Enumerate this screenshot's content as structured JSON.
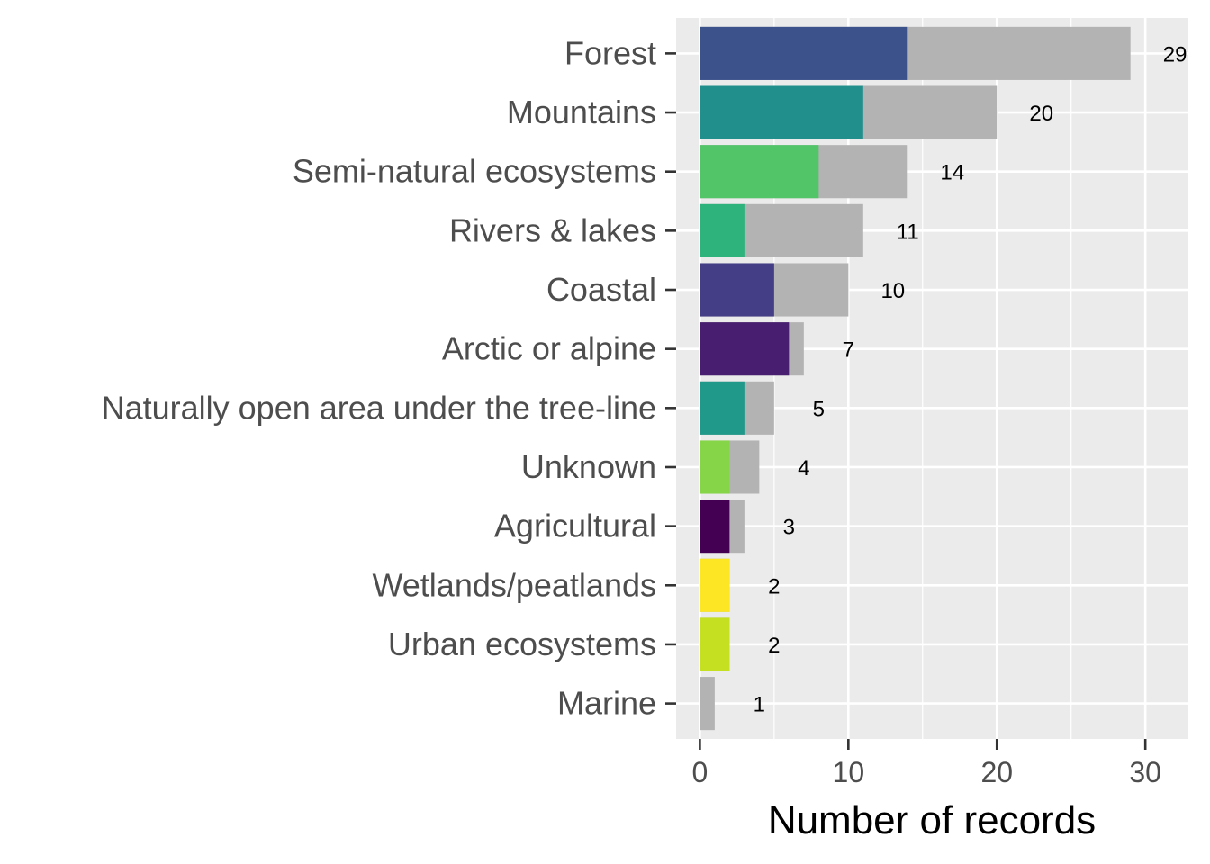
{
  "chart_data": {
    "type": "bar",
    "orientation": "horizontal",
    "stacked": true,
    "title": "",
    "xlabel": "Number of records",
    "ylabel": "",
    "xlim": [
      -1.6,
      32.9
    ],
    "xticks": [
      0,
      10,
      20,
      30
    ],
    "grid": true,
    "legend": "none",
    "panel_background": "#ebebeb",
    "grid_color": "#ffffff",
    "total_color": "#b3b3b3",
    "categories": [
      "Forest",
      "Mountains",
      "Semi-natural ecosystems",
      "Rivers & lakes",
      "Coastal",
      "Arctic or alpine",
      "Naturally open area under the tree-line",
      "Unknown",
      "Agricultural",
      "Wetlands/peatlands",
      "Urban ecosystems",
      "Marine"
    ],
    "totals": [
      29,
      20,
      14,
      11,
      10,
      7,
      5,
      4,
      3,
      2,
      2,
      1
    ],
    "highlighted": [
      14,
      11,
      8,
      3,
      5,
      6,
      3,
      2,
      2,
      2,
      2,
      0
    ],
    "highlight_colors": [
      "#3b528b",
      "#21908d",
      "#52c569",
      "#2eb37c",
      "#433e85",
      "#481f70",
      "#21998a",
      "#86d549",
      "#440154",
      "#fde725",
      "#c5e021",
      "#b3b3b3"
    ],
    "data_labels": [
      "29",
      "20",
      "14",
      "11",
      "10",
      "7",
      "5",
      "4",
      "3",
      "2",
      "2",
      "1"
    ]
  }
}
